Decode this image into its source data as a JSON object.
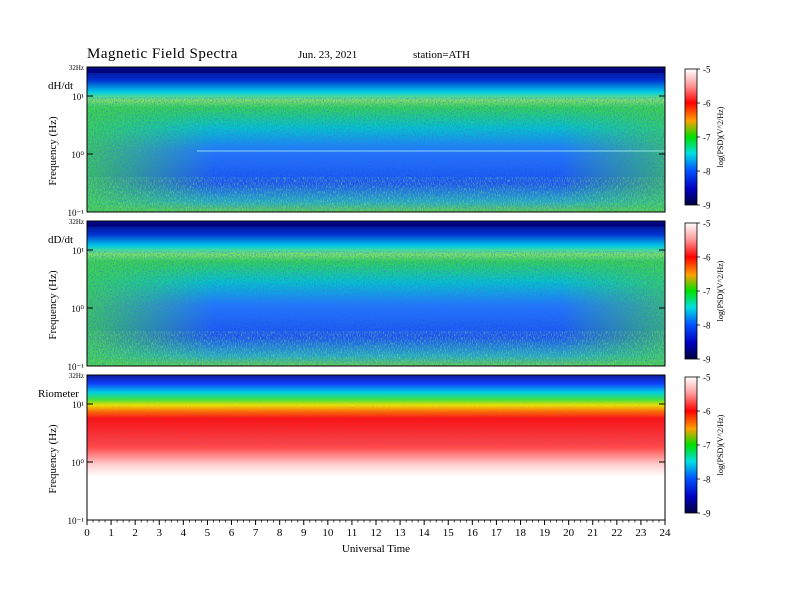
{
  "header": {
    "title": "Magnetic  Field  Spectra",
    "date": "Jun. 23, 2021",
    "station": "station=ATH"
  },
  "chart_data": [
    {
      "type": "heatmap",
      "panel_label": "dH/dt",
      "top_label": "32Hz",
      "ylabel": "Frequency  (Hz)",
      "yscale": "log",
      "yticks": [
        "10¹",
        "10⁰",
        "10⁻¹"
      ],
      "colorbar": {
        "label": "log(PSD)(V^2/Hz)",
        "ticks": [
          -5,
          -6,
          -7,
          -8,
          -9
        ]
      }
    },
    {
      "type": "heatmap",
      "panel_label": "dD/dt",
      "top_label": "32Hz",
      "ylabel": "Frequency  (Hz)",
      "yscale": "log",
      "yticks": [
        "10¹",
        "10⁰",
        "10⁻¹"
      ],
      "colorbar": {
        "label": "log(PSD)(V^2/Hz)",
        "ticks": [
          -5,
          -6,
          -7,
          -8,
          -9
        ]
      }
    },
    {
      "type": "heatmap",
      "panel_label": "Riometer",
      "top_label": "32Hz",
      "ylabel": "Frequency  (Hz)",
      "yscale": "log",
      "yticks": [
        "10¹",
        "10⁰",
        "10⁻¹"
      ],
      "colorbar": {
        "label": "log(PSD)(V^2/Hz)",
        "ticks": [
          -5,
          -6,
          -7,
          -8,
          -9
        ]
      }
    }
  ],
  "xaxis": {
    "label": "Universal Time",
    "ticks": [
      "0",
      "1",
      "2",
      "3",
      "4",
      "5",
      "6",
      "7",
      "8",
      "9",
      "10",
      "11",
      "12",
      "13",
      "14",
      "15",
      "16",
      "17",
      "18",
      "19",
      "20",
      "21",
      "22",
      "23",
      "24"
    ],
    "range": [
      0,
      24
    ]
  }
}
